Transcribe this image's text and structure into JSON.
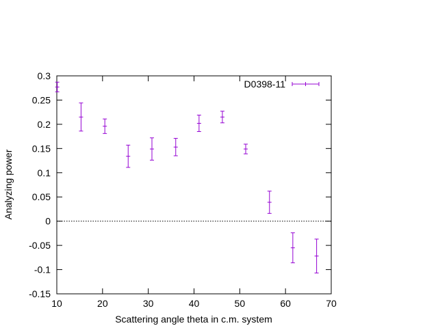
{
  "chart_data": {
    "type": "scatter",
    "xlabel": "Scattering angle theta in c.m. system",
    "ylabel": "Analyzing power",
    "xlim": [
      10,
      70
    ],
    "ylim": [
      -0.15,
      0.3
    ],
    "x_ticks": [
      10,
      20,
      30,
      40,
      50,
      60,
      70
    ],
    "x_tick_labels": [
      "10",
      "20",
      "30",
      "40",
      "50",
      "60",
      "70"
    ],
    "y_ticks": [
      -0.15,
      -0.1,
      -0.05,
      0,
      0.05,
      0.1,
      0.15,
      0.2,
      0.25,
      0.3
    ],
    "y_tick_labels": [
      "-0.15",
      "-0.1",
      "-0.05",
      "0",
      "0.05",
      "0.1",
      "0.15",
      "0.2",
      "0.25",
      "0.3"
    ],
    "grid": false,
    "zero_line": true,
    "legend_position": "top-right",
    "series": [
      {
        "name": "D0398-11",
        "color": "#9400d3",
        "style": "errorbars",
        "points": [
          {
            "x": 10.1,
            "y": 0.277,
            "err": 0.01
          },
          {
            "x": 15.3,
            "y": 0.215,
            "err": 0.029
          },
          {
            "x": 20.5,
            "y": 0.196,
            "err": 0.015
          },
          {
            "x": 25.6,
            "y": 0.134,
            "err": 0.023
          },
          {
            "x": 30.8,
            "y": 0.149,
            "err": 0.023
          },
          {
            "x": 36.0,
            "y": 0.153,
            "err": 0.018
          },
          {
            "x": 41.1,
            "y": 0.202,
            "err": 0.017
          },
          {
            "x": 46.2,
            "y": 0.215,
            "err": 0.012
          },
          {
            "x": 51.3,
            "y": 0.149,
            "err": 0.01
          },
          {
            "x": 56.5,
            "y": 0.039,
            "err": 0.023
          },
          {
            "x": 61.6,
            "y": -0.055,
            "err": 0.031
          },
          {
            "x": 66.8,
            "y": -0.072,
            "err": 0.035
          }
        ]
      }
    ]
  }
}
